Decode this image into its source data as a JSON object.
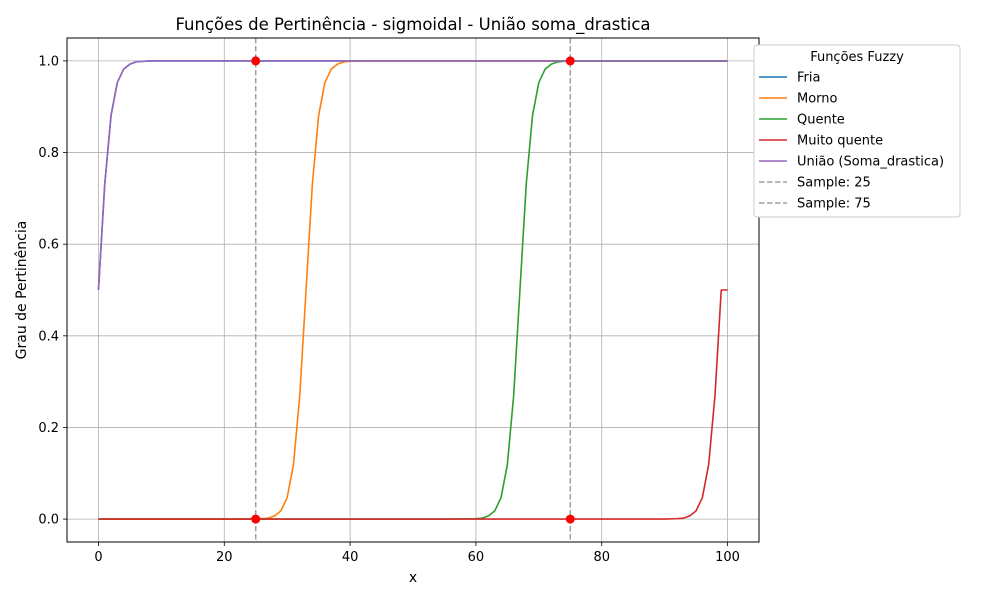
{
  "chart_data": {
    "type": "line",
    "title": "Funções de Pertinência - sigmoidal - União soma_drastica",
    "xlabel": "x",
    "ylabel": "Grau de Pertinência",
    "xlim": [
      -5,
      105
    ],
    "ylim": [
      -0.05,
      1.05
    ],
    "xticks": [
      0,
      20,
      40,
      60,
      80,
      100
    ],
    "yticks": [
      0.0,
      0.2,
      0.4,
      0.6,
      0.8,
      1.0
    ],
    "ytick_labels": [
      "0.0",
      "0.2",
      "0.4",
      "0.6",
      "0.8",
      "1.0"
    ],
    "grid": true,
    "legend": {
      "title": "Funções Fuzzy",
      "placement": "outside-right-top"
    },
    "x": [
      0,
      1,
      2,
      3,
      4,
      5,
      6,
      7,
      8,
      9,
      10,
      12,
      15,
      20,
      25,
      26,
      27,
      28,
      29,
      30,
      31,
      32,
      33,
      34,
      35,
      36,
      37,
      38,
      39,
      40,
      42,
      45,
      50,
      55,
      60,
      61,
      62,
      63,
      64,
      65,
      66,
      67,
      68,
      69,
      70,
      71,
      72,
      73,
      74,
      75,
      77,
      80,
      85,
      90,
      92,
      93,
      94,
      95,
      96,
      97,
      98,
      99,
      100
    ],
    "series": [
      {
        "name": "Fria",
        "color": "#1f77b4",
        "values": [
          0.5,
          0.731,
          0.881,
          0.953,
          0.982,
          0.993,
          0.998,
          0.999,
          1,
          1,
          1,
          1,
          1,
          1,
          1,
          1,
          1,
          1,
          1,
          1,
          1,
          1,
          1,
          1,
          1,
          1,
          1,
          1,
          1,
          1,
          1,
          1,
          1,
          1,
          1,
          1,
          1,
          1,
          1,
          1,
          1,
          1,
          1,
          1,
          1,
          1,
          1,
          1,
          1,
          1,
          1,
          1,
          1,
          1,
          1,
          1,
          1,
          1,
          1,
          1,
          1,
          1,
          1
        ]
      },
      {
        "name": "Morno",
        "color": "#ff7f0e",
        "values": [
          0,
          0,
          0,
          0,
          0,
          0,
          0,
          0,
          0,
          0,
          0,
          0,
          0,
          0,
          0,
          0.001,
          0.002,
          0.007,
          0.018,
          0.047,
          0.119,
          0.269,
          0.5,
          0.731,
          0.881,
          0.953,
          0.982,
          0.993,
          0.998,
          0.999,
          1,
          1,
          1,
          1,
          1,
          1,
          1,
          1,
          1,
          1,
          1,
          1,
          1,
          1,
          1,
          1,
          1,
          1,
          1,
          1,
          1,
          1,
          1,
          1,
          1,
          1,
          1,
          1,
          1,
          1,
          1,
          1,
          1
        ]
      },
      {
        "name": "Quente",
        "color": "#2ca02c",
        "values": [
          0,
          0,
          0,
          0,
          0,
          0,
          0,
          0,
          0,
          0,
          0,
          0,
          0,
          0,
          0,
          0,
          0,
          0,
          0,
          0,
          0,
          0,
          0,
          0,
          0,
          0,
          0,
          0,
          0,
          0,
          0,
          0,
          0,
          0,
          0.001,
          0.002,
          0.007,
          0.018,
          0.047,
          0.119,
          0.269,
          0.5,
          0.731,
          0.881,
          0.953,
          0.982,
          0.993,
          0.998,
          0.999,
          1,
          1,
          1,
          1,
          1,
          1,
          1,
          1,
          1,
          1,
          1,
          1,
          1,
          1
        ]
      },
      {
        "name": "Muito quente",
        "color": "#d62728",
        "values": [
          0,
          0,
          0,
          0,
          0,
          0,
          0,
          0,
          0,
          0,
          0,
          0,
          0,
          0,
          0,
          0,
          0,
          0,
          0,
          0,
          0,
          0,
          0,
          0,
          0,
          0,
          0,
          0,
          0,
          0,
          0,
          0,
          0,
          0,
          0,
          0,
          0,
          0,
          0,
          0,
          0,
          0,
          0,
          0,
          0,
          0,
          0,
          0,
          0,
          0,
          0,
          0,
          0,
          0,
          0.001,
          0.002,
          0.007,
          0.018,
          0.047,
          0.119,
          0.269,
          0.5,
          0.5
        ]
      },
      {
        "name": "União (Soma_drastica)",
        "color": "#9467bd",
        "values": [
          0.5,
          0.731,
          0.881,
          0.953,
          0.982,
          0.993,
          0.998,
          0.999,
          1,
          1,
          1,
          1,
          1,
          1,
          1,
          1,
          1,
          1,
          1,
          1,
          1,
          1,
          1,
          1,
          1,
          1,
          1,
          1,
          1,
          1,
          1,
          1,
          1,
          1,
          1,
          1,
          1,
          1,
          1,
          1,
          1,
          1,
          1,
          1,
          1,
          1,
          1,
          1,
          1,
          1,
          1,
          1,
          1,
          1,
          1,
          1,
          1,
          1,
          1,
          1,
          1,
          1,
          1
        ]
      }
    ],
    "samples": [
      {
        "name": "Sample: 25",
        "x": 25,
        "points": [
          0,
          1
        ]
      },
      {
        "name": "Sample: 75",
        "x": 75,
        "points": [
          0,
          1
        ]
      }
    ],
    "sample_line_color": "#a0a0a0",
    "sample_point_color": "#ff0000"
  }
}
